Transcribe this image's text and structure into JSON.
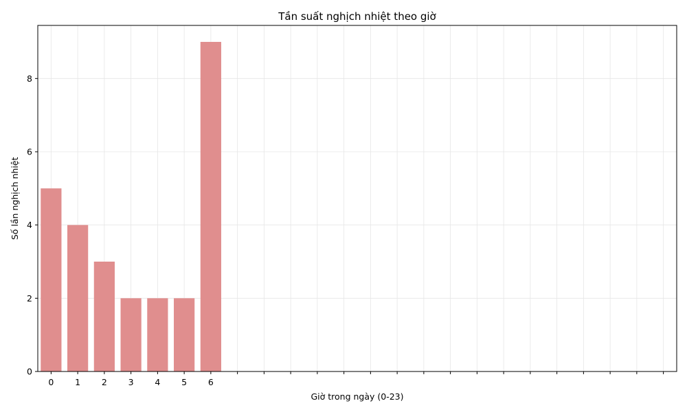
{
  "chart_data": {
    "type": "bar",
    "title": "Tần suất nghịch nhiệt theo giờ",
    "xlabel": "Giờ trong ngày (0-23)",
    "ylabel": "Số lần nghịch nhiệt",
    "categories": [
      "0",
      "1",
      "2",
      "3",
      "4",
      "5",
      "6"
    ],
    "values": [
      5,
      4,
      3,
      2,
      2,
      2,
      9
    ],
    "xlim": [
      -0.5,
      23.5
    ],
    "ylim": [
      0,
      9.45
    ],
    "yticks": [
      0,
      2,
      4,
      6,
      8
    ],
    "x_minor_ticks": [
      7,
      8,
      9,
      10,
      11,
      12,
      13,
      14,
      15,
      16,
      17,
      18,
      19,
      20,
      21,
      22,
      23
    ],
    "grid": true,
    "bar_color": "#e08e8e",
    "grid_color": "#e6e6e6"
  }
}
